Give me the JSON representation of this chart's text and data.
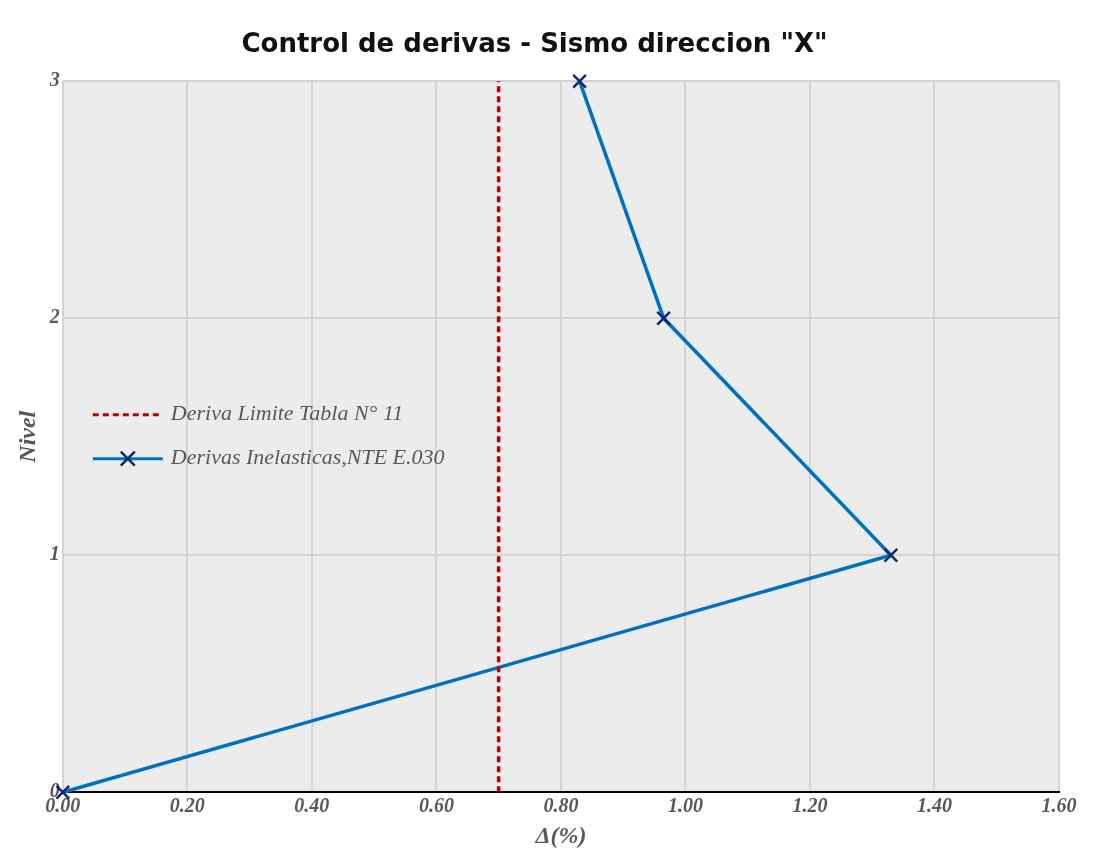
{
  "chart_data": {
    "type": "line",
    "title": "Control de derivas - Sismo direccion \"X\"",
    "xlabel": "Δ(%)",
    "ylabel": "Nivel",
    "series": [
      {
        "name": "Deriva Limite Tabla N° 11",
        "color": "#c00000",
        "x": [
          0.7,
          0.7
        ],
        "values": [
          0,
          3
        ],
        "marker": "none",
        "line_style": "dashed"
      },
      {
        "name": "Derivas Inelasticas,NTE E.030",
        "color": "#0070c0",
        "x": [
          0,
          1.33,
          0.965,
          0.83
        ],
        "values": [
          0,
          1,
          2,
          3
        ]
      }
    ],
    "xlim": [
      0,
      1.6
    ],
    "xticks": [
      {
        "value": 0,
        "label": "0.00"
      },
      {
        "value": 0.2,
        "label": "0.20"
      },
      {
        "value": 0.4,
        "label": "0.40"
      },
      {
        "value": 0.6,
        "label": "0.60"
      },
      {
        "value": 0.8,
        "label": "0.80"
      },
      {
        "value": 1,
        "label": "1.00"
      },
      {
        "value": 1.2,
        "label": "1.20"
      },
      {
        "value": 1.4,
        "label": "1.40"
      },
      {
        "value": 1.6,
        "label": "1.60"
      }
    ],
    "ylim": [
      0,
      3
    ],
    "yticks": [
      0,
      1,
      2,
      3
    ],
    "grid": true,
    "legend": "left",
    "marker": "cross",
    "line_style": "solid"
  }
}
